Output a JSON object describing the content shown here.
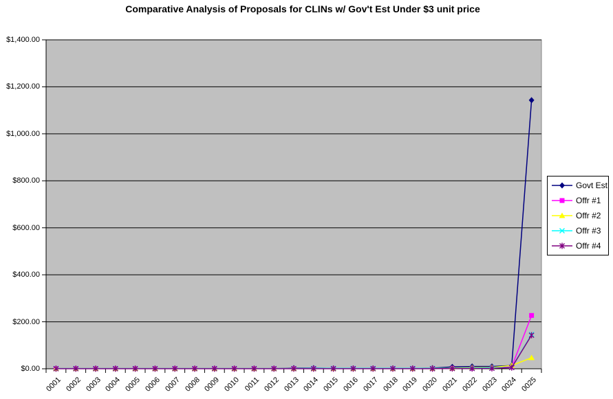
{
  "title": "Comparative Analysis of Proposals for CLINs w/ Gov't Est Under $3 unit price",
  "chart_data": {
    "type": "line",
    "title": "Comparative Analysis of Proposals for CLINs w/ Gov't Est Under $3 unit price",
    "xlabel": "",
    "ylabel": "",
    "ylim": [
      0,
      1400
    ],
    "grid": true,
    "plot_background": "#c0c0c0",
    "legend_position": "right",
    "y_ticks": [
      {
        "value": 0,
        "label": "$0.00"
      },
      {
        "value": 200,
        "label": "$200.00"
      },
      {
        "value": 400,
        "label": "$400.00"
      },
      {
        "value": 600,
        "label": "$600.00"
      },
      {
        "value": 800,
        "label": "$800.00"
      },
      {
        "value": 1000,
        "label": "$1,000.00"
      },
      {
        "value": 1200,
        "label": "$1,200.00"
      },
      {
        "value": 1400,
        "label": "$1,400.00"
      }
    ],
    "categories": [
      "0001",
      "0002",
      "0003",
      "0004",
      "0005",
      "0006",
      "0007",
      "0008",
      "0009",
      "0010",
      "0011",
      "0012",
      "0013",
      "0014",
      "0015",
      "0016",
      "0017",
      "0018",
      "0019",
      "0020",
      "0021",
      "0022",
      "0023",
      "0024",
      "0025"
    ],
    "series": [
      {
        "name": "Govt Est",
        "color": "#000080",
        "marker": "diamond",
        "values": [
          1,
          1,
          1,
          1,
          1,
          1,
          1,
          1,
          1,
          1,
          1,
          1,
          3,
          3,
          2,
          2,
          2,
          2,
          2,
          3,
          8,
          10,
          10,
          14,
          1143
        ]
      },
      {
        "name": "Offr #1",
        "color": "#ff00ff",
        "marker": "square",
        "values": [
          1,
          1,
          1,
          1,
          1,
          1,
          1,
          1,
          1,
          1,
          1,
          1,
          1,
          1,
          1,
          1,
          1,
          1,
          1,
          1,
          2,
          3,
          4,
          8,
          227
        ]
      },
      {
        "name": "Offr #2",
        "color": "#ffff00",
        "marker": "triangle",
        "values": [
          1,
          1,
          1,
          1,
          1,
          1,
          1,
          1,
          1,
          1,
          1,
          1,
          1,
          1,
          1,
          1,
          1,
          1,
          1,
          2,
          3,
          5,
          6,
          14,
          47
        ]
      },
      {
        "name": "Offr #3",
        "color": "#00ffff",
        "marker": "x",
        "values": [
          1,
          1,
          1,
          1,
          1,
          1,
          1,
          1,
          1,
          1,
          1,
          1,
          1,
          2,
          2,
          2,
          2,
          2,
          2,
          2,
          2,
          3,
          4,
          6,
          146
        ]
      },
      {
        "name": "Offr #4",
        "color": "#800080",
        "marker": "asterisk",
        "values": [
          0.5,
          0.5,
          0.5,
          0.5,
          0.5,
          0.5,
          0.5,
          0.5,
          0.5,
          0.5,
          0.5,
          0.5,
          0.5,
          0.5,
          0.5,
          0.5,
          0.5,
          0.5,
          0.5,
          0.5,
          1,
          1,
          2,
          5,
          143
        ]
      }
    ]
  }
}
